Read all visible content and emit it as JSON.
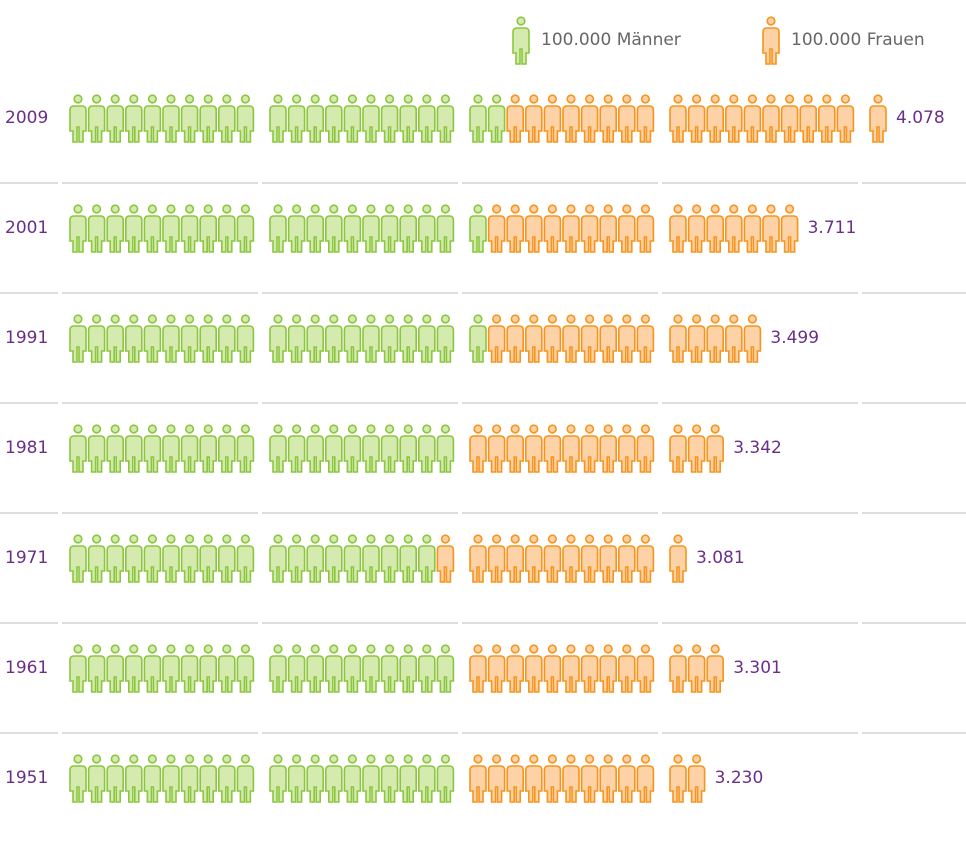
{
  "chart_data": {
    "type": "pictogram",
    "categories": [
      "2009",
      "2001",
      "1991",
      "1981",
      "1971",
      "1961",
      "1951"
    ],
    "series": [
      {
        "name": "100.000 Männer",
        "color": "#8cc63f",
        "values": [
          22,
          21,
          21,
          20,
          19,
          20,
          20
        ]
      },
      {
        "name": "100.000 Frauen",
        "color": "#f7941d",
        "values": [
          19,
          16,
          14,
          13,
          12,
          13,
          12
        ]
      }
    ],
    "totals": [
      4078,
      3711,
      3499,
      3342,
      3081,
      3301,
      3230
    ],
    "total_labels": [
      "4.078",
      "3.711",
      "3.499",
      "3.342",
      "3.081",
      "3.301",
      "3.230"
    ]
  }
}
